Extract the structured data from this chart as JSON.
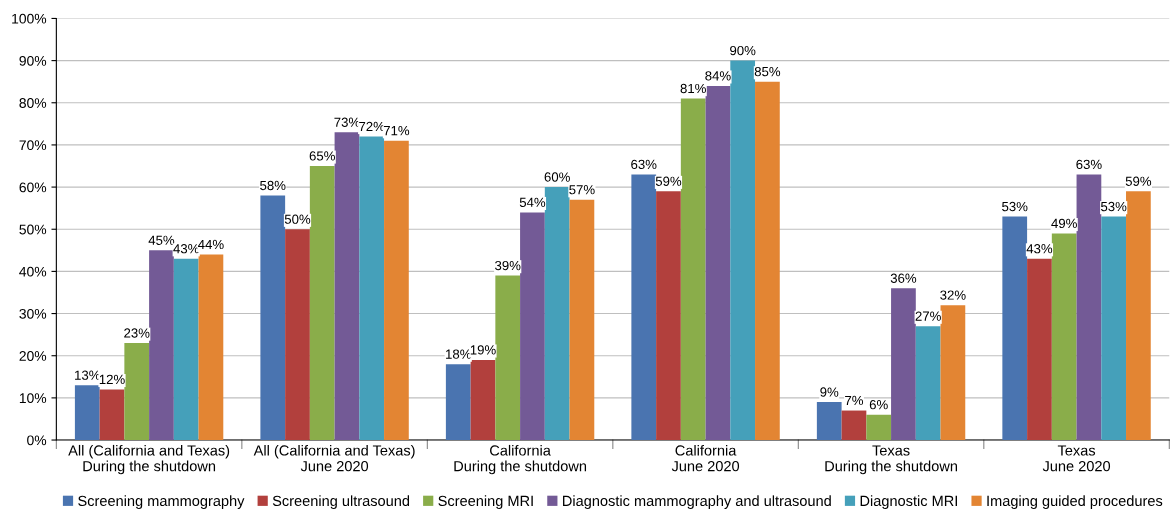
{
  "chart_data": {
    "type": "bar",
    "categories": [
      "All (California and Texas)\nDuring the shutdown",
      "All (California and Texas)\nJune 2020",
      "California\nDuring the shutdown",
      "California\nJune 2020",
      "Texas\nDuring the shutdown",
      "Texas\nJune 2020"
    ],
    "series": [
      {
        "name": "Screening mammography",
        "color": "#4a74b0",
        "values": [
          13,
          58,
          18,
          63,
          9,
          53
        ],
        "value_labels": [
          "13%",
          "58%",
          "18%",
          "63%",
          "9%",
          "53%"
        ]
      },
      {
        "name": "Screening ultrasound",
        "color": "#b2403d",
        "values": [
          12,
          50,
          19,
          59,
          7,
          43
        ],
        "value_labels": [
          "12%",
          "50%",
          "19%",
          "59%",
          "7%",
          "43%"
        ]
      },
      {
        "name": "Screening MRI",
        "color": "#8aad4a",
        "values": [
          23,
          65,
          39,
          81,
          6,
          49
        ],
        "value_labels": [
          "23%",
          "65%",
          "39%",
          "81%",
          "6%",
          "49%"
        ]
      },
      {
        "name": "Diagnostic mammography and ultrasound",
        "color": "#735a96",
        "values": [
          45,
          73,
          54,
          84,
          36,
          63
        ],
        "value_labels": [
          "45%",
          "73%",
          "54%",
          "84%",
          "36%",
          "63%"
        ]
      },
      {
        "name": "Diagnostic MRI",
        "color": "#45a0ba",
        "values": [
          43,
          72,
          60,
          90,
          27,
          53
        ],
        "value_labels": [
          "43%",
          "72%",
          "60%",
          "90%",
          "27%",
          "53%"
        ]
      },
      {
        "name": "Imaging guided procedures",
        "color": "#e38533",
        "values": [
          44,
          71,
          57,
          85,
          32,
          59
        ],
        "value_labels": [
          "44%",
          "71%",
          "57%",
          "85%",
          "32%",
          "59%"
        ]
      }
    ],
    "ylim": [
      0,
      100
    ],
    "yticks": [
      {
        "value": 0,
        "label": "0%"
      },
      {
        "value": 10,
        "label": "10%"
      },
      {
        "value": 20,
        "label": "20%"
      },
      {
        "value": 30,
        "label": "30%"
      },
      {
        "value": 40,
        "label": "40%"
      },
      {
        "value": 50,
        "label": "50%"
      },
      {
        "value": 60,
        "label": "60%"
      },
      {
        "value": 70,
        "label": "70%"
      },
      {
        "value": 80,
        "label": "80%"
      },
      {
        "value": 90,
        "label": "90%"
      },
      {
        "value": 100,
        "label": "100%"
      }
    ],
    "grid": "y",
    "legend": "bottom"
  }
}
